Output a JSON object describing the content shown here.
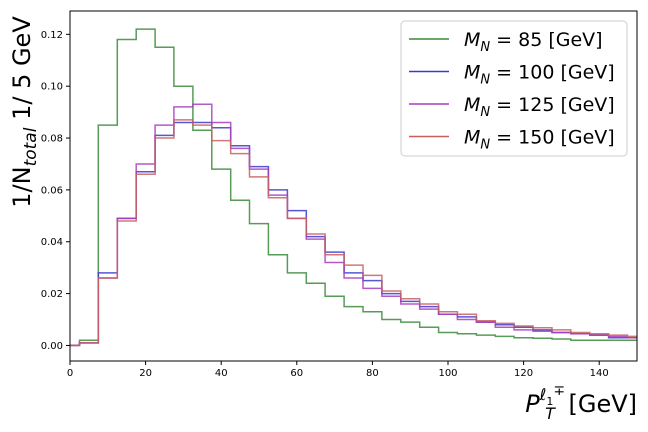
{
  "chart_data": {
    "type": "line",
    "style": "step-histogram",
    "ylabel": "1/N_total  1/ 5 GeV",
    "xlabel": "P_T^{ℓ1∓}  [GeV]",
    "xlim": [
      0,
      150
    ],
    "ylim": [
      -0.006,
      0.129
    ],
    "x_ticks": [
      "0",
      "20",
      "40",
      "60",
      "80",
      "100",
      "120",
      "140"
    ],
    "y_ticks": [
      "0.00",
      "0.02",
      "0.04",
      "0.06",
      "0.08",
      "0.10",
      "0.12"
    ],
    "grid": false,
    "legend_position": "top-right",
    "bin_edges": [
      0,
      2.5,
      7.5,
      12.5,
      17.5,
      22.5,
      27.5,
      32.5,
      37.5,
      42.5,
      47.5,
      52.5,
      57.5,
      62.5,
      67.5,
      72.5,
      77.5,
      82.5,
      87.5,
      92.5,
      97.5,
      102.5,
      107.5,
      112.5,
      117.5,
      122.5,
      127.5,
      132.5,
      137.5,
      142.5,
      147.5,
      150
    ],
    "series": [
      {
        "name": "M_N = 85 [GeV]",
        "color": "#3a8a3a",
        "values": [
          0.0,
          0.002,
          0.085,
          0.118,
          0.122,
          0.115,
          0.1,
          0.083,
          0.068,
          0.056,
          0.047,
          0.035,
          0.028,
          0.024,
          0.019,
          0.015,
          0.013,
          0.01,
          0.009,
          0.007,
          0.005,
          0.0045,
          0.004,
          0.0035,
          0.003,
          0.0028,
          0.0025,
          0.002,
          0.002,
          0.002,
          0.002
        ]
      },
      {
        "name": "M_N = 100 [GeV]",
        "color": "#3a3acc",
        "values": [
          0.0,
          0.001,
          0.028,
          0.049,
          0.067,
          0.081,
          0.086,
          0.086,
          0.084,
          0.077,
          0.069,
          0.06,
          0.052,
          0.042,
          0.036,
          0.028,
          0.025,
          0.02,
          0.017,
          0.015,
          0.012,
          0.011,
          0.009,
          0.008,
          0.007,
          0.006,
          0.005,
          0.0045,
          0.004,
          0.003,
          0.003
        ]
      },
      {
        "name": "M_N = 125 [GeV]",
        "color": "#a83cc0",
        "values": [
          0.0,
          0.001,
          0.026,
          0.049,
          0.07,
          0.085,
          0.092,
          0.093,
          0.086,
          0.076,
          0.068,
          0.058,
          0.049,
          0.041,
          0.032,
          0.026,
          0.022,
          0.019,
          0.016,
          0.014,
          0.012,
          0.01,
          0.009,
          0.007,
          0.006,
          0.0055,
          0.005,
          0.0045,
          0.004,
          0.0035,
          0.003
        ]
      },
      {
        "name": "M_N = 150 [GeV]",
        "color": "#c86060",
        "values": [
          0.0,
          0.001,
          0.026,
          0.048,
          0.066,
          0.08,
          0.087,
          0.085,
          0.079,
          0.074,
          0.065,
          0.057,
          0.049,
          0.043,
          0.035,
          0.031,
          0.027,
          0.021,
          0.018,
          0.016,
          0.013,
          0.012,
          0.0095,
          0.0085,
          0.0075,
          0.0068,
          0.006,
          0.005,
          0.0045,
          0.004,
          0.0035
        ]
      }
    ],
    "legend": {
      "entries": [
        {
          "prefix": "M",
          "sub": "N",
          "rest": " =  85  [GeV]"
        },
        {
          "prefix": "M",
          "sub": "N",
          "rest": " = 100 [GeV]"
        },
        {
          "prefix": "M",
          "sub": "N",
          "rest": " = 125 [GeV]"
        },
        {
          "prefix": "M",
          "sub": "N",
          "rest": " = 150 [GeV]"
        }
      ]
    },
    "ylabel_parts": {
      "main": "1/N",
      "sub": "total",
      "rest": " 1/ 5 GeV"
    },
    "xlabel_parts": {
      "main": "P",
      "sub": "T",
      "sup": "ℓ",
      "sup_sub": "1",
      "sup_sign": "∓",
      "rest": "  [GeV]"
    }
  }
}
